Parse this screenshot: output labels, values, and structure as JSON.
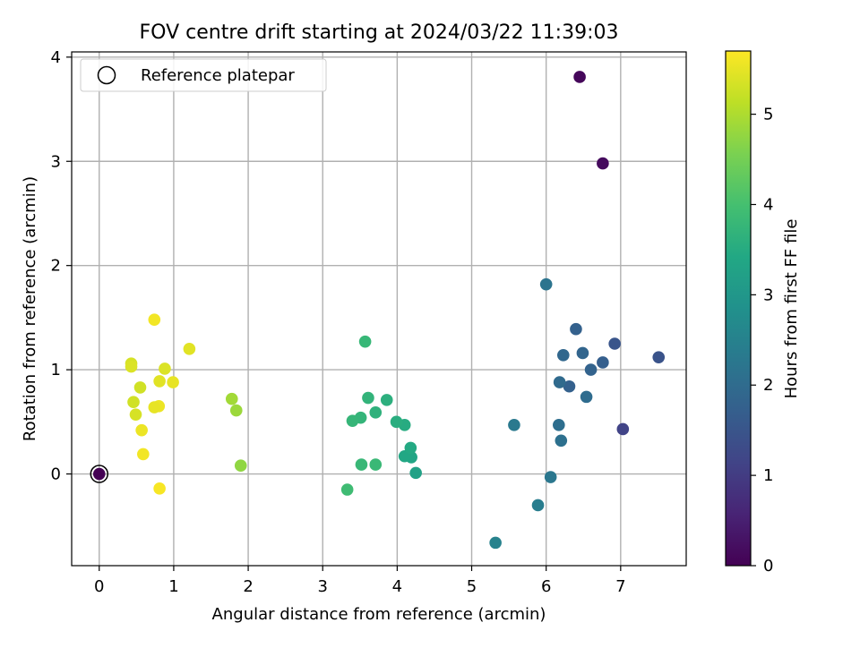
{
  "chart_data": {
    "type": "scatter",
    "title": "FOV centre drift starting at 2024/03/22 11:39:03",
    "xlabel": "Angular distance from reference (arcmin)",
    "ylabel": "Rotation from reference (arcmin)",
    "xlim": [
      -0.37,
      7.88
    ],
    "ylim": [
      -0.88,
      4.05
    ],
    "xticks": [
      0,
      1,
      2,
      3,
      4,
      5,
      6,
      7
    ],
    "yticks": [
      0,
      1,
      2,
      3,
      4
    ],
    "grid": true,
    "legend": {
      "placement": "top-left",
      "entries": [
        "Reference platepar"
      ]
    },
    "reference_point": {
      "x": 0.0,
      "y": 0.0
    },
    "colorbar": {
      "label": "Hours from first FF file",
      "colormap": "viridis",
      "range": [
        0,
        5.7
      ],
      "ticks": [
        0,
        1,
        2,
        3,
        4,
        5
      ]
    },
    "points": [
      {
        "x": 0.0,
        "y": 0.0,
        "c": 0.0
      },
      {
        "x": 6.45,
        "y": 3.81,
        "c": 0.1
      },
      {
        "x": 6.76,
        "y": 2.98,
        "c": 0.15
      },
      {
        "x": 7.03,
        "y": 0.43,
        "c": 1.15
      },
      {
        "x": 7.51,
        "y": 1.12,
        "c": 1.45
      },
      {
        "x": 6.92,
        "y": 1.25,
        "c": 1.5
      },
      {
        "x": 6.76,
        "y": 1.07,
        "c": 1.7
      },
      {
        "x": 6.6,
        "y": 1.0,
        "c": 1.8
      },
      {
        "x": 6.4,
        "y": 1.39,
        "c": 1.75
      },
      {
        "x": 6.49,
        "y": 1.16,
        "c": 1.85
      },
      {
        "x": 6.23,
        "y": 1.14,
        "c": 1.9
      },
      {
        "x": 6.31,
        "y": 0.84,
        "c": 1.75
      },
      {
        "x": 6.18,
        "y": 0.88,
        "c": 1.95
      },
      {
        "x": 6.54,
        "y": 0.74,
        "c": 2.0
      },
      {
        "x": 6.17,
        "y": 0.47,
        "c": 2.05
      },
      {
        "x": 6.2,
        "y": 0.32,
        "c": 2.1
      },
      {
        "x": 6.0,
        "y": 1.82,
        "c": 2.2
      },
      {
        "x": 5.57,
        "y": 0.47,
        "c": 2.3
      },
      {
        "x": 6.06,
        "y": -0.03,
        "c": 2.25
      },
      {
        "x": 5.89,
        "y": -0.3,
        "c": 2.4
      },
      {
        "x": 5.32,
        "y": -0.66,
        "c": 2.5
      },
      {
        "x": 4.25,
        "y": 0.01,
        "c": 3.25
      },
      {
        "x": 4.19,
        "y": 0.16,
        "c": 3.35
      },
      {
        "x": 4.1,
        "y": 0.17,
        "c": 3.4
      },
      {
        "x": 4.18,
        "y": 0.25,
        "c": 3.45
      },
      {
        "x": 4.1,
        "y": 0.47,
        "c": 3.5
      },
      {
        "x": 3.99,
        "y": 0.5,
        "c": 3.55
      },
      {
        "x": 3.86,
        "y": 0.71,
        "c": 3.6
      },
      {
        "x": 3.71,
        "y": 0.59,
        "c": 3.65
      },
      {
        "x": 3.61,
        "y": 0.73,
        "c": 3.7
      },
      {
        "x": 3.51,
        "y": 0.54,
        "c": 3.72
      },
      {
        "x": 3.4,
        "y": 0.51,
        "c": 3.75
      },
      {
        "x": 3.57,
        "y": 1.27,
        "c": 3.78
      },
      {
        "x": 3.52,
        "y": 0.09,
        "c": 3.8
      },
      {
        "x": 3.71,
        "y": 0.09,
        "c": 3.82
      },
      {
        "x": 3.33,
        "y": -0.15,
        "c": 3.9
      },
      {
        "x": 1.9,
        "y": 0.08,
        "c": 4.75
      },
      {
        "x": 1.84,
        "y": 0.61,
        "c": 4.85
      },
      {
        "x": 1.78,
        "y": 0.72,
        "c": 4.9
      },
      {
        "x": 1.21,
        "y": 1.2,
        "c": 5.45
      },
      {
        "x": 0.99,
        "y": 0.88,
        "c": 5.5
      },
      {
        "x": 0.88,
        "y": 1.01,
        "c": 5.4
      },
      {
        "x": 0.81,
        "y": 0.89,
        "c": 5.45
      },
      {
        "x": 0.8,
        "y": 0.65,
        "c": 5.55
      },
      {
        "x": 0.74,
        "y": 0.64,
        "c": 5.5
      },
      {
        "x": 0.74,
        "y": 1.48,
        "c": 5.6
      },
      {
        "x": 0.55,
        "y": 0.83,
        "c": 5.3
      },
      {
        "x": 0.46,
        "y": 0.69,
        "c": 5.3
      },
      {
        "x": 0.49,
        "y": 0.57,
        "c": 5.35
      },
      {
        "x": 0.43,
        "y": 1.06,
        "c": 5.35
      },
      {
        "x": 0.43,
        "y": 1.03,
        "c": 5.4
      },
      {
        "x": 0.57,
        "y": 0.42,
        "c": 5.55
      },
      {
        "x": 0.59,
        "y": 0.19,
        "c": 5.6
      },
      {
        "x": 0.81,
        "y": -0.14,
        "c": 5.65
      }
    ]
  }
}
